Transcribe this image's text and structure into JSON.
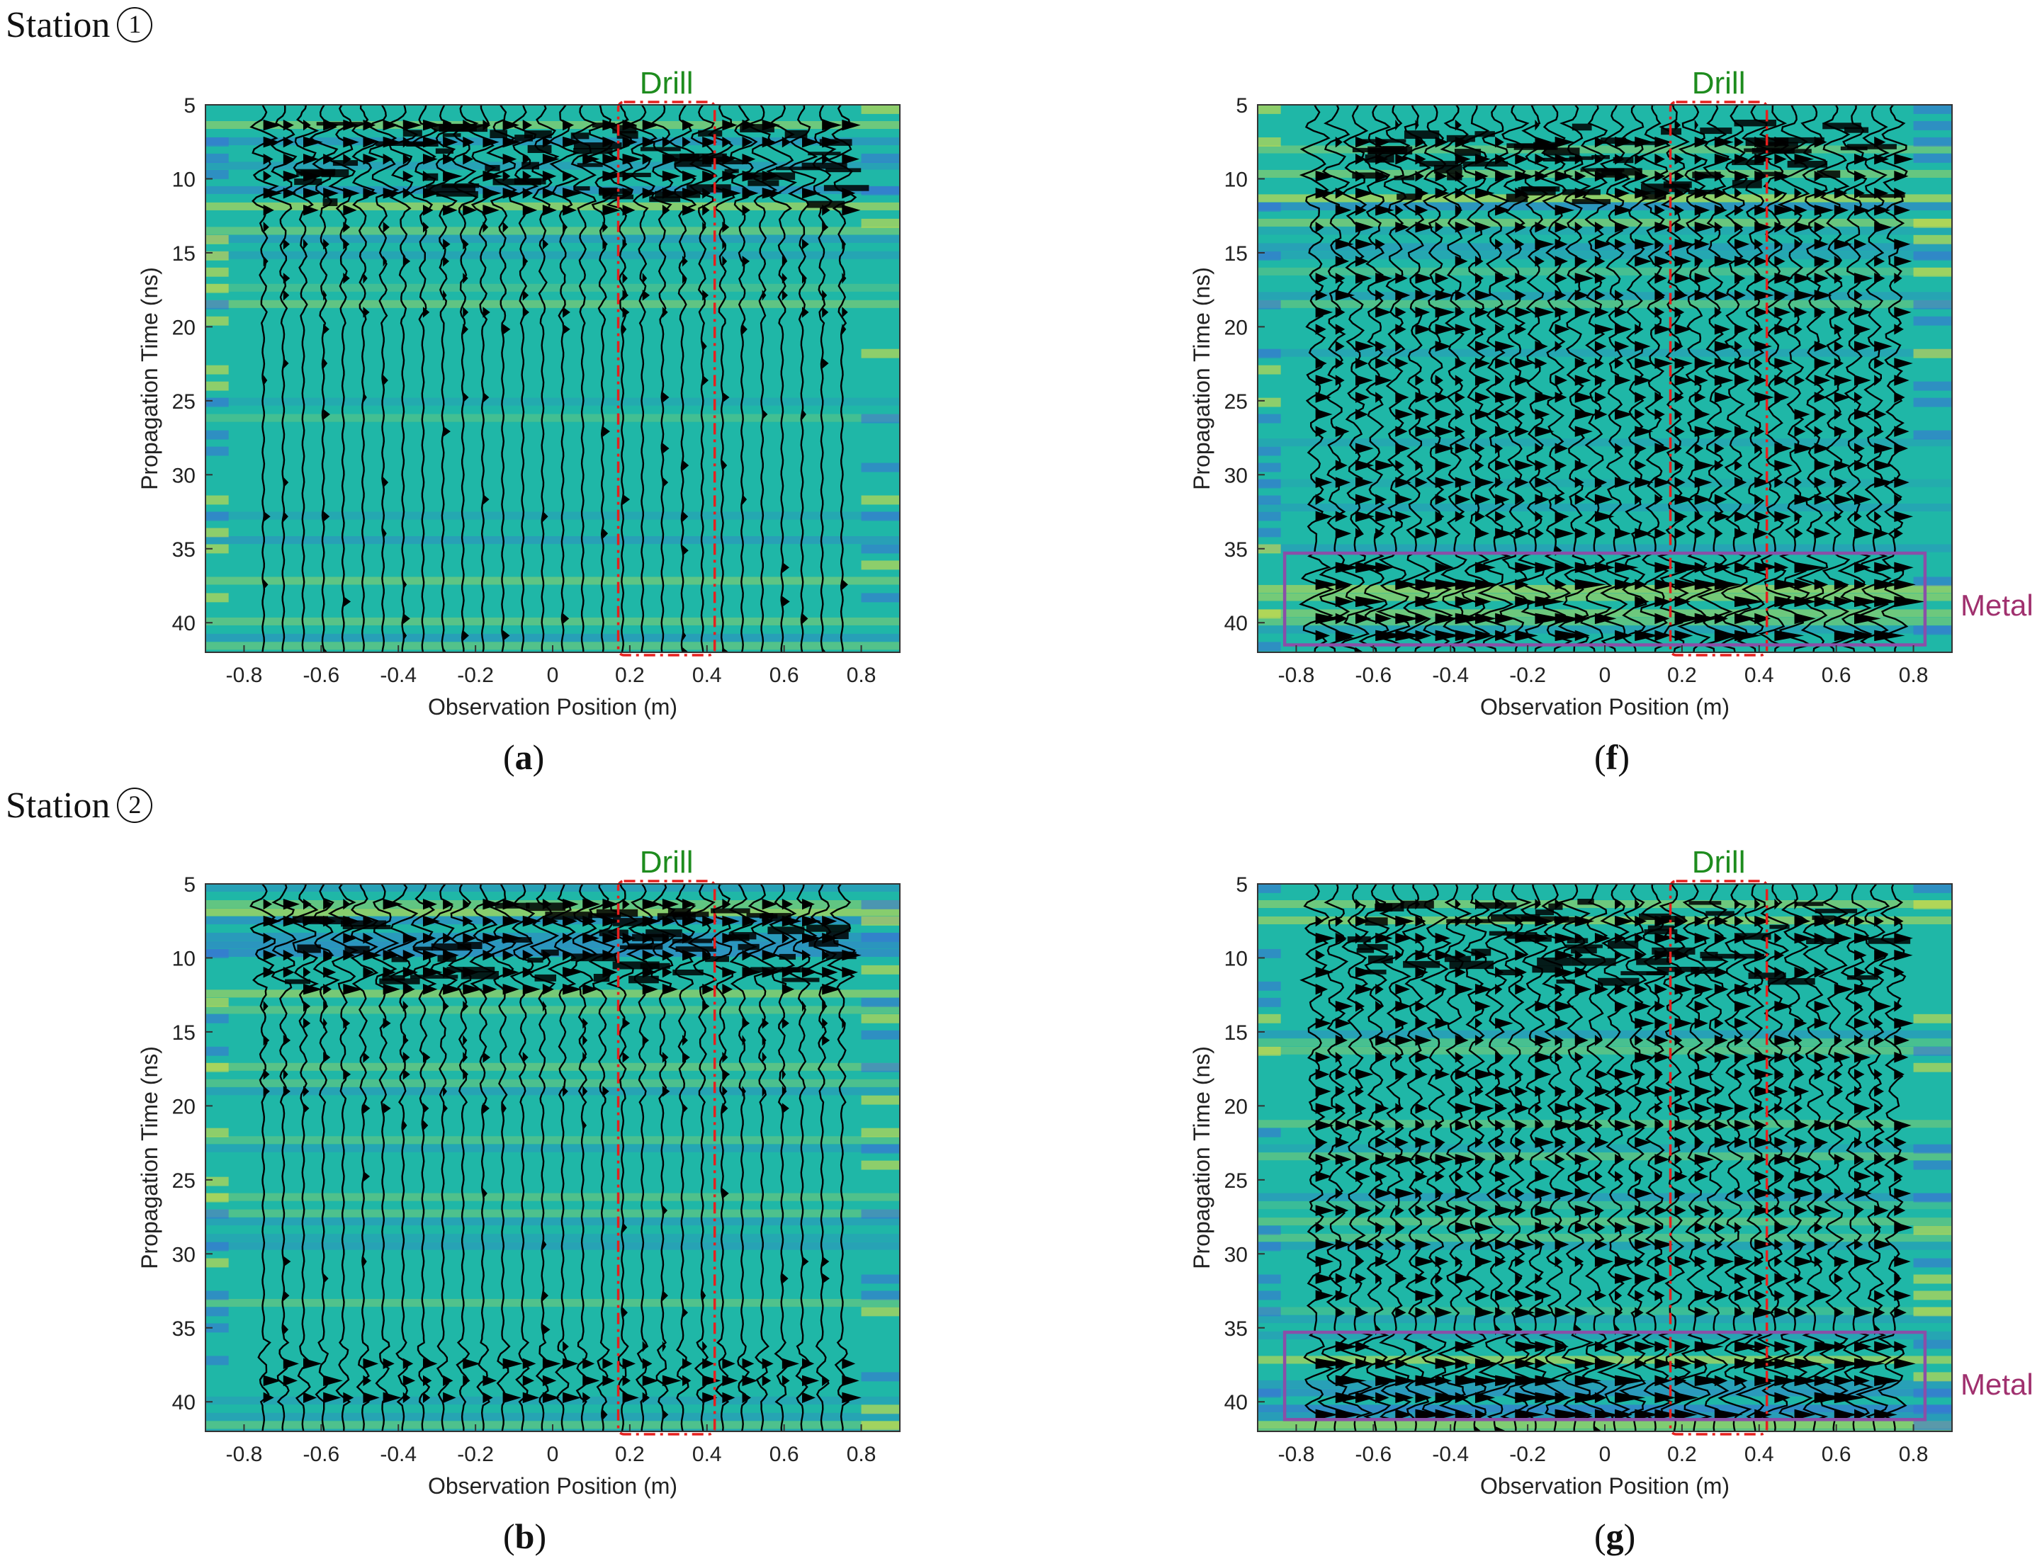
{
  "stations": [
    {
      "label": "Station",
      "number": "1"
    },
    {
      "label": "Station",
      "number": "2"
    }
  ],
  "colors": {
    "background": "#1fb7a7",
    "trace": "#000000",
    "drill_box": "#e6201e",
    "drill_label": "#1e8c1e",
    "metal_box": "#8a4fa8",
    "metal_label": "#a0306e",
    "stripe_yellow": "#e8e23a",
    "stripe_blue": "#3b6fd9"
  },
  "chart_data": [
    {
      "id": "a",
      "caption": "a",
      "type": "heatmap",
      "title": "",
      "xlabel": "Observation Position (m)",
      "ylabel": "Propagation Time (ns)",
      "xlim": [
        -0.9,
        0.9
      ],
      "ylim": [
        5,
        42
      ],
      "xticks": [
        "-0.8",
        "-0.6",
        "-0.4",
        "-0.2",
        "0",
        "0.2",
        "0.4",
        "0.6",
        "0.8"
      ],
      "yticks": [
        "5",
        "10",
        "15",
        "20",
        "25",
        "30",
        "35",
        "40"
      ],
      "annotations": [
        {
          "label": "Drill",
          "x_range": [
            0.17,
            0.42
          ]
        }
      ],
      "trace_x_range": [
        -0.75,
        0.75
      ],
      "strong_band_ns": [
        6,
        12
      ],
      "deep_band_ns": null,
      "metal": null
    },
    {
      "id": "b",
      "caption": "b",
      "type": "heatmap",
      "title": "",
      "xlabel": "Observation Position (m)",
      "ylabel": "Propagation Time (ns)",
      "xlim": [
        -0.9,
        0.9
      ],
      "ylim": [
        5,
        42
      ],
      "xticks": [
        "-0.8",
        "-0.6",
        "-0.4",
        "-0.2",
        "0",
        "0.2",
        "0.4",
        "0.6",
        "0.8"
      ],
      "yticks": [
        "5",
        "10",
        "15",
        "20",
        "25",
        "30",
        "35",
        "40"
      ],
      "annotations": [
        {
          "label": "Drill",
          "x_range": [
            0.17,
            0.42
          ]
        }
      ],
      "trace_x_range": [
        -0.75,
        0.75
      ],
      "strong_band_ns": [
        6,
        12
      ],
      "deep_band_ns": [
        36,
        40
      ],
      "metal": null
    },
    {
      "id": "f",
      "caption": "f",
      "type": "heatmap",
      "title": "",
      "xlabel": "Observation Position (m)",
      "ylabel": "Propagation Time (ns)",
      "xlim": [
        -0.9,
        0.9
      ],
      "ylim": [
        5,
        42
      ],
      "xticks": [
        "-0.8",
        "-0.6",
        "-0.4",
        "-0.2",
        "0",
        "0.2",
        "0.4",
        "0.6",
        "0.8"
      ],
      "yticks": [
        "5",
        "10",
        "15",
        "20",
        "25",
        "30",
        "35",
        "40"
      ],
      "annotations": [
        {
          "label": "Drill",
          "x_range": [
            0.17,
            0.42
          ]
        }
      ],
      "trace_x_range": [
        -0.75,
        0.75
      ],
      "strong_band_ns": [
        7,
        34
      ],
      "deep_band_ns": null,
      "metal": {
        "label": "Metal",
        "x_range": [
          -0.83,
          0.83
        ],
        "y_range": [
          35.3,
          41.5
        ]
      }
    },
    {
      "id": "g",
      "caption": "g",
      "type": "heatmap",
      "title": "",
      "xlabel": "Observation Position (m)",
      "ylabel": "Propagation Time (ns)",
      "xlim": [
        -0.9,
        0.9
      ],
      "ylim": [
        5,
        42
      ],
      "xticks": [
        "-0.8",
        "-0.6",
        "-0.4",
        "-0.2",
        "0",
        "0.2",
        "0.4",
        "0.6",
        "0.8"
      ],
      "yticks": [
        "5",
        "10",
        "15",
        "20",
        "25",
        "30",
        "35",
        "40"
      ],
      "annotations": [
        {
          "label": "Drill",
          "x_range": [
            0.17,
            0.42
          ]
        }
      ],
      "trace_x_range": [
        -0.75,
        0.75
      ],
      "strong_band_ns": [
        7,
        34
      ],
      "deep_band_ns": null,
      "metal": {
        "label": "Metal",
        "x_range": [
          -0.83,
          0.83
        ],
        "y_range": [
          35.3,
          41.2
        ]
      }
    }
  ]
}
